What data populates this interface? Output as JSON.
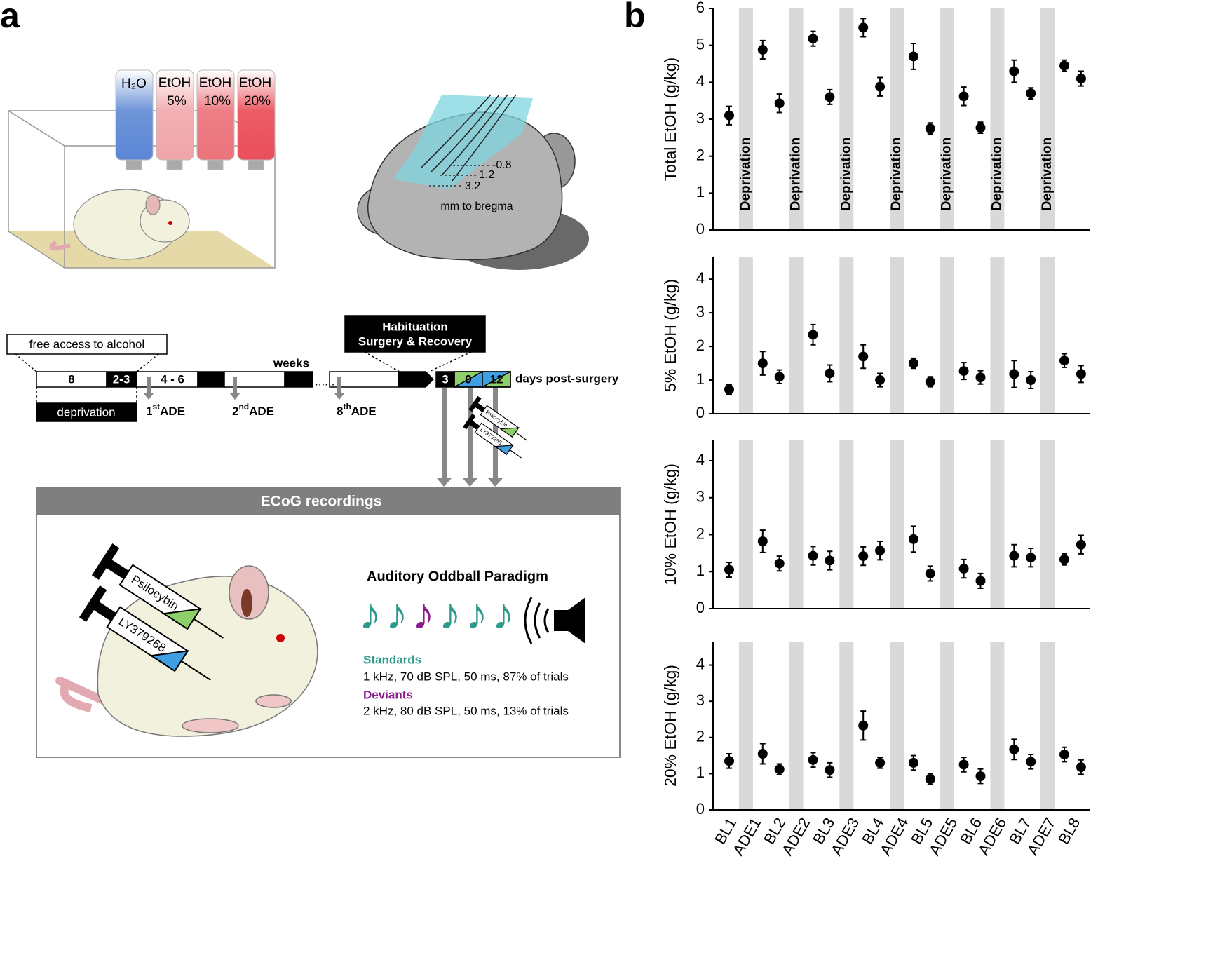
{
  "panel_labels": [
    "a",
    "b"
  ],
  "cage": {
    "bottles": [
      [
        "H₂O"
      ],
      [
        "EtOH",
        "5%"
      ],
      [
        "EtOH",
        "10%"
      ],
      [
        "EtOH",
        "20%"
      ]
    ]
  },
  "brain": {
    "depths": [
      "-0.8",
      "1.2",
      "3.2"
    ],
    "caption": "mm to bregma"
  },
  "timeline": {
    "access": "free  access to  alcohol",
    "segments": [
      "8",
      "2-3",
      "4 - 6"
    ],
    "unit": "weeks",
    "deprivation": "deprivation",
    "ade": [
      [
        "1",
        "st",
        "ADE"
      ],
      [
        "2",
        "nd",
        "ADE"
      ],
      [
        "8",
        "th",
        "ADE"
      ]
    ],
    "ellipsis": "......",
    "habituation": [
      "Habituation",
      "Surgery  & Recovery"
    ],
    "days": [
      "3",
      "9",
      "12"
    ],
    "days_unit": "days post-surgery"
  },
  "drugs": [
    "Psilocybin",
    "LY379268"
  ],
  "recording": {
    "title": "ECoG recordings",
    "paradigm": "Auditory Oddball Paradigm",
    "standards": "Standards",
    "standards_detail": "1 kHz, 70 dB SPL, 50 ms, 87% of trials",
    "deviants": "Deviants",
    "deviants_detail": "2 kHz, 80 dB SPL, 50 ms, 13% of trials"
  },
  "chart_data": [
    {
      "type": "errorbar",
      "y_label": "Total EtOH (g/kg)",
      "band_label": "Deprivation",
      "band_color": "#d9d9d9",
      "color": "#000000",
      "ylim": [
        0,
        6
      ],
      "yticks": [
        0,
        1,
        2,
        3,
        4,
        5,
        6
      ],
      "values": [
        3.1,
        4.88,
        3.43,
        5.18,
        3.6,
        5.48,
        3.88,
        4.7,
        2.75,
        3.62,
        2.77,
        4.3,
        3.7,
        4.45,
        4.1
      ],
      "errors": [
        0.25,
        0.25,
        0.25,
        0.2,
        0.2,
        0.25,
        0.25,
        0.35,
        0.15,
        0.25,
        0.15,
        0.3,
        0.15,
        0.15,
        0.2
      ]
    },
    {
      "type": "errorbar",
      "y_label": "5% EtOH (g/kg)",
      "band_color": "#d9d9d9",
      "color": "#000000",
      "ylim": [
        0,
        4.65
      ],
      "yticks": [
        0,
        1,
        2,
        3,
        4
      ],
      "values": [
        0.72,
        1.5,
        1.1,
        2.35,
        1.2,
        1.7,
        1.0,
        1.5,
        0.95,
        1.27,
        1.08,
        1.18,
        1.0,
        1.58,
        1.18
      ],
      "errors": [
        0.15,
        0.35,
        0.2,
        0.3,
        0.25,
        0.35,
        0.2,
        0.15,
        0.15,
        0.25,
        0.2,
        0.4,
        0.25,
        0.2,
        0.25
      ]
    },
    {
      "type": "errorbar",
      "y_label": "10% EtOH (g/kg)",
      "band_color": "#d9d9d9",
      "color": "#000000",
      "ylim": [
        0,
        4.55
      ],
      "yticks": [
        0,
        1,
        2,
        3,
        4
      ],
      "values": [
        1.05,
        1.82,
        1.22,
        1.43,
        1.3,
        1.42,
        1.57,
        1.88,
        0.95,
        1.08,
        0.75,
        1.43,
        1.38,
        1.33,
        1.73
      ],
      "errors": [
        0.2,
        0.3,
        0.2,
        0.25,
        0.25,
        0.25,
        0.25,
        0.35,
        0.2,
        0.25,
        0.2,
        0.3,
        0.25,
        0.15,
        0.25
      ]
    },
    {
      "type": "errorbar",
      "y_label": "20% EtOH (g/kg)",
      "band_color": "#d9d9d9",
      "color": "#000000",
      "ylim": [
        0,
        4.65
      ],
      "yticks": [
        0,
        1,
        2,
        3,
        4
      ],
      "categories": [
        "BL1",
        "ADE1",
        "BL2",
        "ADE2",
        "BL3",
        "ADE3",
        "BL4",
        "ADE4",
        "BL5",
        "ADE5",
        "BL6",
        "ADE6",
        "BL7",
        "ADE7",
        "BL8"
      ],
      "values": [
        1.35,
        1.55,
        1.12,
        1.38,
        1.1,
        2.33,
        1.3,
        1.3,
        0.85,
        1.25,
        0.93,
        1.67,
        1.33,
        1.53,
        1.18
      ],
      "errors": [
        0.2,
        0.28,
        0.15,
        0.2,
        0.2,
        0.4,
        0.15,
        0.2,
        0.15,
        0.2,
        0.2,
        0.28,
        0.2,
        0.2,
        0.2
      ]
    }
  ]
}
